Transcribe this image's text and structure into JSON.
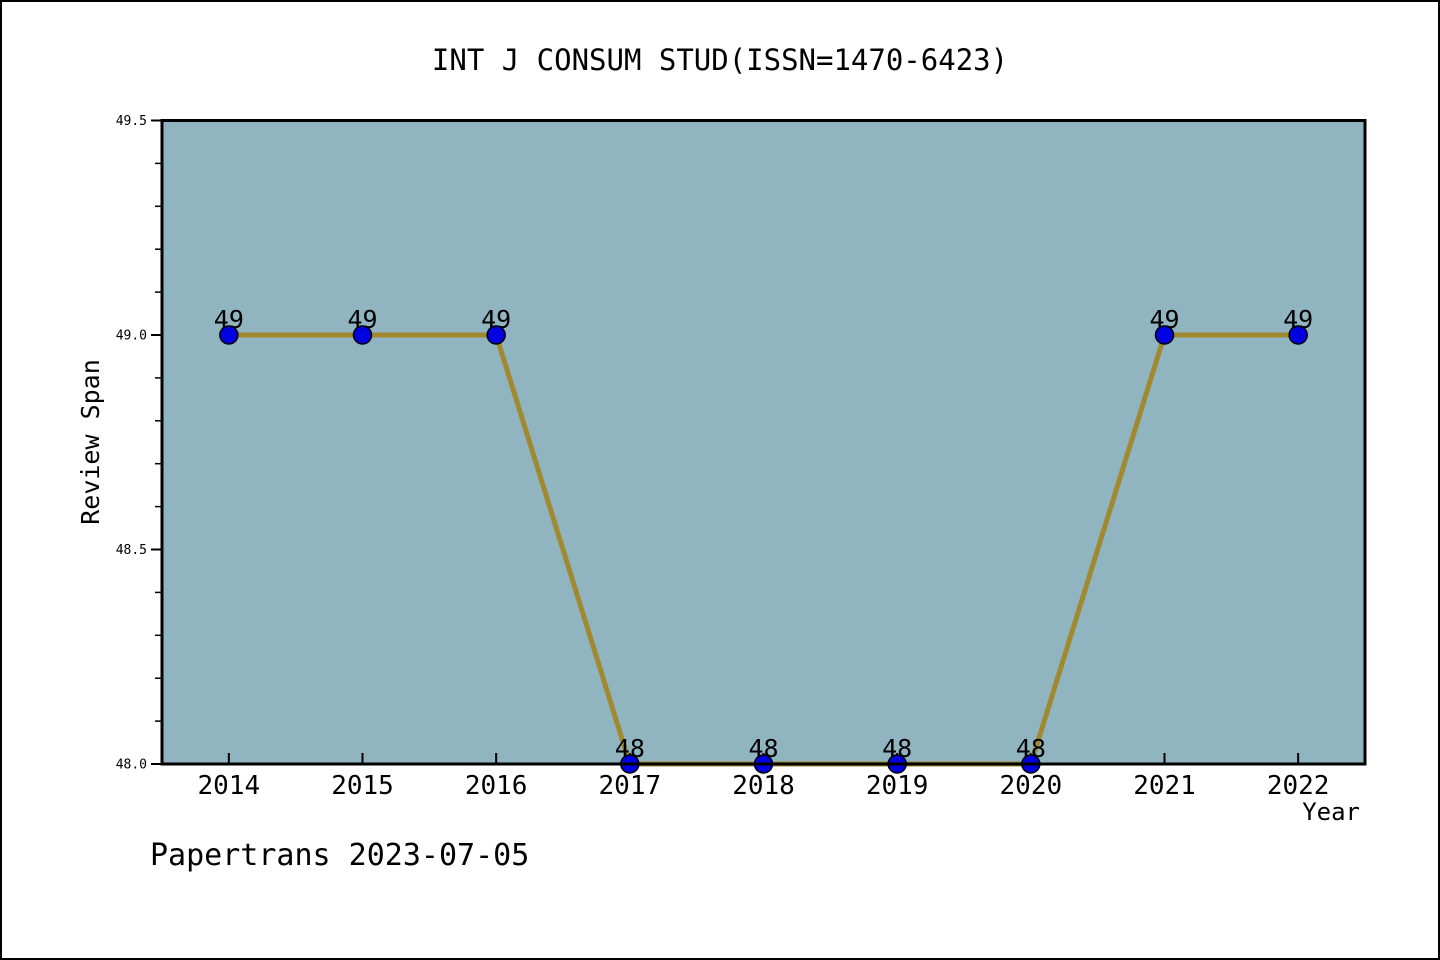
{
  "page": {
    "background": "#ffffff",
    "border_color": "#000000",
    "footer": "Papertrans 2023-07-05"
  },
  "chart_data": {
    "type": "line",
    "title": "INT J CONSUM STUD(ISSN=1470-6423)",
    "xlabel": "Year",
    "ylabel": "Review Span",
    "x": [
      2014,
      2015,
      2016,
      2017,
      2018,
      2019,
      2020,
      2021,
      2022
    ],
    "series": [
      {
        "name": "Review Span",
        "values": [
          49,
          49,
          49,
          48,
          48,
          48,
          48,
          49,
          49
        ],
        "line_color": "#a0892f",
        "marker_color": "#0000e0",
        "marker_edge_color": "#000000"
      }
    ],
    "point_labels": [
      "49",
      "49",
      "49",
      "48",
      "48",
      "48",
      "48",
      "49",
      "49"
    ],
    "xlim": [
      2013.5,
      2022.5
    ],
    "ylim": [
      48.0,
      49.5
    ],
    "y_ticks": [
      {
        "value": 48.0,
        "label": "48.0"
      },
      {
        "value": 48.5,
        "label": "48.5"
      },
      {
        "value": 49.0,
        "label": "49.0"
      },
      {
        "value": 49.5,
        "label": "49.5"
      }
    ],
    "y_minor_tick_step": 0.1,
    "plot_bg_color": "#90b5c1",
    "axis_color": "#000000",
    "grid": false,
    "legend": "none"
  }
}
